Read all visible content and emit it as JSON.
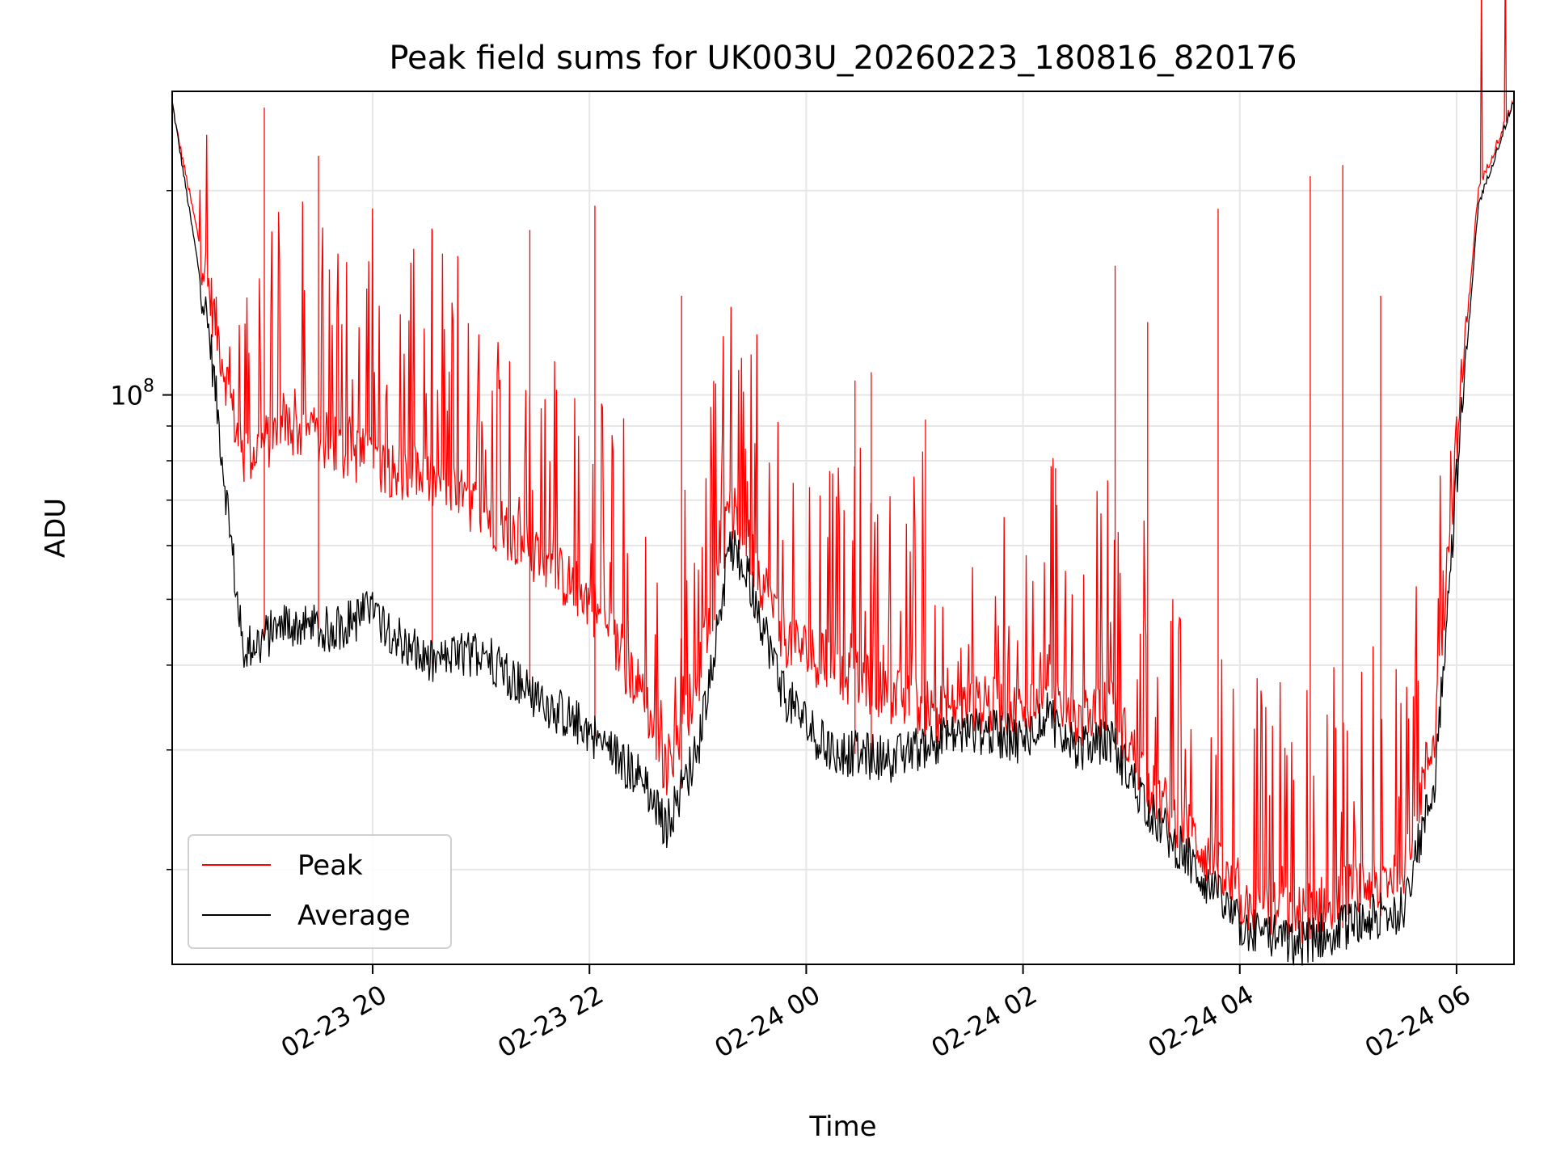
{
  "chart_data": {
    "type": "line",
    "title": "Peak field sums for UK003U_20260223_180816_820176",
    "xlabel": "Time",
    "ylabel": "ADU",
    "yscale": "log",
    "ylim": [
      14500000,
      280000000
    ],
    "xlim_hours": [
      18.15,
      30.53
    ],
    "x_tick_labels": [
      "02-23 20",
      "02-23 22",
      "02-24 00",
      "02-24 02",
      "02-24 04",
      "02-24 06"
    ],
    "x_tick_hours": [
      20,
      22,
      24,
      26,
      28,
      30
    ],
    "y_major_tick": {
      "value": 100000000,
      "base": "10",
      "exponent": "8"
    },
    "y_minor_ticks": [
      20000000,
      30000000,
      40000000,
      50000000,
      60000000,
      70000000,
      80000000,
      90000000,
      200000000
    ],
    "grid": true,
    "legend_position": "lower-left",
    "series": [
      {
        "name": "Peak",
        "color": "#ff0000",
        "x_hours": [
          18.15,
          18.5,
          18.8,
          19.2,
          19.6,
          20.0,
          20.5,
          21.0,
          21.5,
          22.0,
          22.5,
          22.7,
          23.0,
          23.3,
          23.5,
          23.8,
          24.2,
          24.8,
          25.2,
          25.6,
          26.0,
          26.2,
          26.5,
          26.8,
          27.2,
          27.6,
          28.0,
          28.5,
          29.0,
          29.5,
          29.8,
          30.0,
          30.2,
          30.53
        ],
        "values": [
          265000000,
          140000000,
          80000000,
          90000000,
          85000000,
          80000000,
          75000000,
          68000000,
          58000000,
          50000000,
          36000000,
          28000000,
          38000000,
          68000000,
          58000000,
          44000000,
          40000000,
          36000000,
          34000000,
          35000000,
          34000000,
          38000000,
          33000000,
          35000000,
          26000000,
          22000000,
          18000000,
          17000000,
          18500000,
          20000000,
          32000000,
          85000000,
          200000000,
          272000000
        ],
        "spikes": [
          {
            "hour": 19.0,
            "value": 265000000
          },
          {
            "hour": 19.5,
            "value": 225000000
          },
          {
            "hour": 20.55,
            "value": 175000000
          },
          {
            "hour": 21.45,
            "value": 175000000
          },
          {
            "hour": 22.05,
            "value": 190000000
          },
          {
            "hour": 22.85,
            "value": 140000000
          },
          {
            "hour": 24.45,
            "value": 105000000
          },
          {
            "hour": 24.6,
            "value": 108000000
          },
          {
            "hour": 25.1,
            "value": 92000000
          },
          {
            "hour": 26.3,
            "value": 78000000
          },
          {
            "hour": 26.85,
            "value": 155000000
          },
          {
            "hour": 27.15,
            "value": 128000000
          },
          {
            "hour": 27.8,
            "value": 188000000
          },
          {
            "hour": 28.65,
            "value": 210000000
          },
          {
            "hour": 28.95,
            "value": 218000000
          },
          {
            "hour": 29.3,
            "value": 140000000
          }
        ]
      },
      {
        "name": "Average",
        "color": "#000000",
        "x_hours": [
          18.15,
          18.5,
          18.8,
          19.2,
          19.6,
          20.0,
          20.5,
          21.0,
          21.5,
          22.0,
          22.5,
          22.7,
          23.0,
          23.3,
          23.5,
          23.8,
          24.2,
          24.8,
          25.2,
          25.6,
          26.0,
          26.2,
          26.5,
          26.8,
          27.2,
          27.6,
          28.0,
          28.5,
          29.0,
          29.5,
          29.8,
          30.0,
          30.2,
          30.53
        ],
        "values": [
          270000000,
          120000000,
          42000000,
          46000000,
          45000000,
          48000000,
          40000000,
          42000000,
          36000000,
          32000000,
          27000000,
          23000000,
          30000000,
          60000000,
          52000000,
          36000000,
          30000000,
          29000000,
          31000000,
          32000000,
          31000000,
          34000000,
          30000000,
          31000000,
          24000000,
          20000000,
          16500000,
          15500000,
          16500000,
          17500000,
          27000000,
          75000000,
          190000000,
          272000000
        ]
      }
    ]
  }
}
